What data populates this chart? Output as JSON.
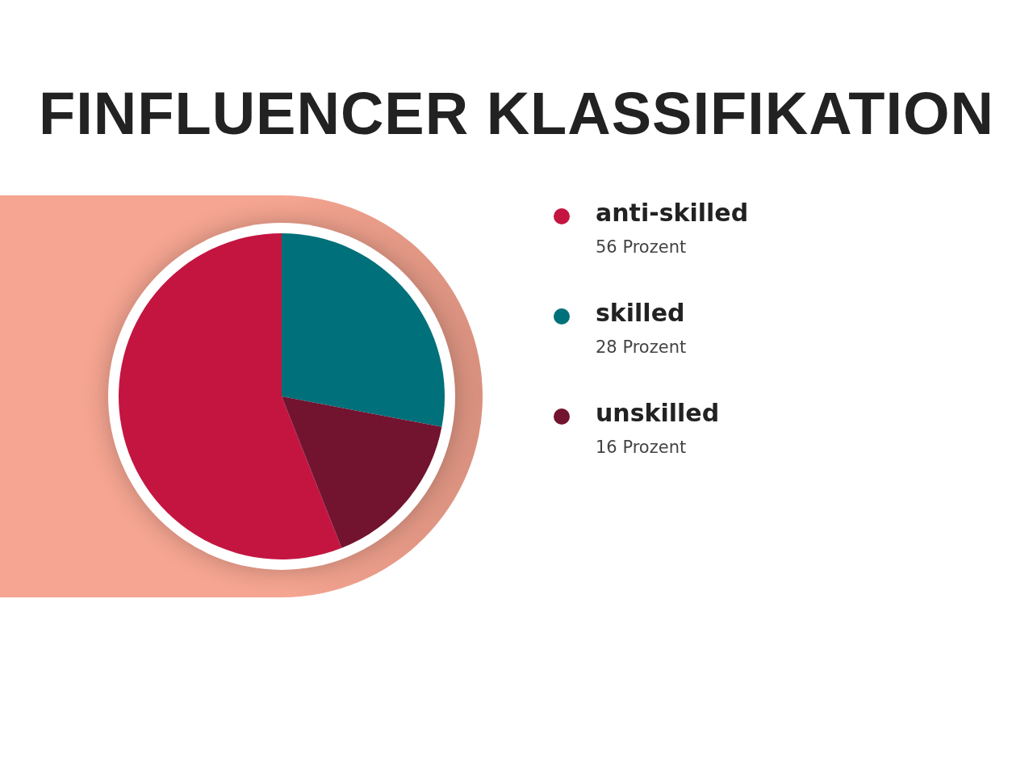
{
  "chart_data": {
    "type": "pie",
    "title": "FINFLUENCER KLASSIFIKATION",
    "categories": [
      "anti-skilled",
      "skilled",
      "unskilled"
    ],
    "values": [
      56,
      28,
      16
    ],
    "colors": [
      "#c41540",
      "#00707a",
      "#72132f"
    ],
    "value_labels": [
      "56 Prozent",
      "28 Prozent",
      "16 Prozent"
    ],
    "legend": "right"
  }
}
